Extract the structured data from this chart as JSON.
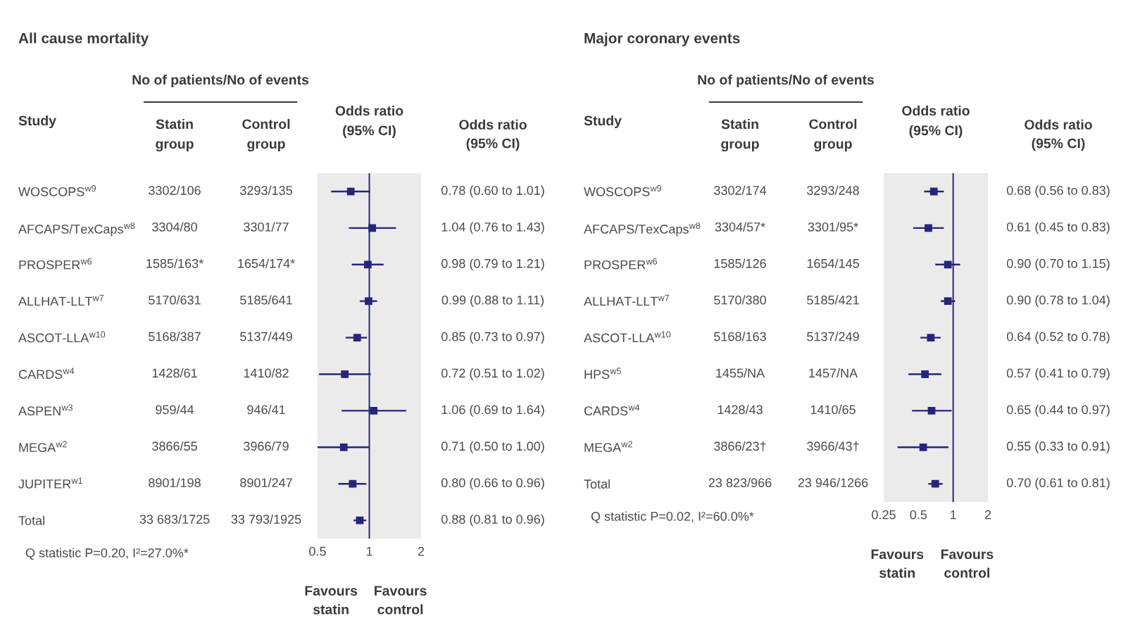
{
  "chart_data": [
    {
      "type": "other",
      "title": "All cause mortality",
      "subtitle": "No of patients/No of events",
      "ylabel": "Study",
      "categories": [
        "Statin\ngroup",
        "Control\ngroup"
      ],
      "y_categories": [
        "WOSCOPS$^{w9}$",
        "AFCAPS/TexCaps$^{w8}$",
        "PROSPER$^{w6}$",
        "ALLHAT-LLT$^{w7}$",
        "ASCOT-LLA$^{w10}$",
        "CARDS$^{w4}$",
        "ASPEN$^{w3}$",
        "MEGA$^{w2}$",
        "JUPITER$^{w1}$",
        "Total"
      ],
      "cell_labels": [
        [
          "3302/106",
          "3293/135"
        ],
        [
          "3304/80",
          "3301/77"
        ],
        [
          "1585/163*",
          "1654/174*"
        ],
        [
          "5170/631",
          "5185/641"
        ],
        [
          "5168/387",
          "5137/449"
        ],
        [
          "1428/61",
          "1410/82"
        ],
        [
          "959/44",
          "946/41"
        ],
        [
          "3866/55",
          "3966/79"
        ],
        [
          "8901/198",
          "8901/247"
        ],
        [
          "33 683/1725",
          "33 793/1925"
        ]
      ],
      "annotations": [
        "Q statistic P=0.20, I²=27.0%*"
      ]
    },
    {
      "type": "scatter",
      "orientation": "horizontal",
      "xlabel": "Odds ratio\n(95% CI)",
      "categories": [
        null,
        null,
        null,
        null,
        null,
        null,
        null,
        null,
        null,
        null
      ],
      "values": [
        0.78,
        1.04,
        0.98,
        0.99,
        0.85,
        0.72,
        1.06,
        0.71,
        0.8,
        0.88
      ],
      "errors": [
        [
          0.6,
          1.01
        ],
        [
          0.76,
          1.43
        ],
        [
          0.79,
          1.21
        ],
        [
          0.88,
          1.11
        ],
        [
          0.73,
          0.97
        ],
        [
          0.51,
          1.02
        ],
        [
          0.69,
          1.64
        ],
        [
          0.5,
          1.0
        ],
        [
          0.66,
          0.96
        ],
        [
          0.81,
          0.96
        ]
      ],
      "value_labels": [
        "0.78 (0.60 to 1.01)",
        "1.04 (0.76 to 1.43)",
        "0.98 (0.79 to 1.21)",
        "0.99 (0.88 to 1.11)",
        "0.85 (0.73 to 0.97)",
        "0.72 (0.51 to 1.02)",
        "1.06 (0.69 to 1.64)",
        "0.71 (0.50 to 1.00)",
        "0.80 (0.66 to 0.96)",
        "0.88 (0.81 to 0.96)"
      ],
      "color": "#25257a",
      "marker": "square",
      "log": "x",
      "xlim": [
        0.5,
        2
      ],
      "xticks": [
        0.5,
        1,
        2
      ],
      "ref_lines": [
        {
          "axis": "x",
          "value": 1,
          "color": "#25257a"
        }
      ],
      "bands": [
        {
          "axis": "x",
          "from": 0.5,
          "to": 2,
          "color": "#ebebeb"
        }
      ],
      "annotations": [
        "Odds ratio\n(95% CI)",
        "Favours\nstatin",
        "Favours\ncontrol"
      ]
    },
    {
      "type": "other",
      "title": "Major coronary events",
      "subtitle": "No of patients/No of events",
      "ylabel": "Study",
      "categories": [
        "Statin\ngroup",
        "Control\ngroup"
      ],
      "y_categories": [
        "WOSCOPS$^{w9}$",
        "AFCAPS/TexCaps$^{w8}$",
        "PROSPER$^{w6}$",
        "ALLHAT-LLT$^{w7}$",
        "ASCOT-LLA$^{w10}$",
        "HPS$^{w5}$",
        "CARDS$^{w4}$",
        "MEGA$^{w2}$",
        "Total"
      ],
      "cell_labels": [
        [
          "3302/174",
          "3293/248"
        ],
        [
          "3304/57*",
          "3301/95*"
        ],
        [
          "1585/126",
          "1654/145"
        ],
        [
          "5170/380",
          "5185/421"
        ],
        [
          "5168/163",
          "5137/249"
        ],
        [
          "1455/NA",
          "1457/NA"
        ],
        [
          "1428/43",
          "1410/65"
        ],
        [
          "3866/23†",
          "3966/43†"
        ],
        [
          "23 823/966",
          "23 946/1266"
        ]
      ],
      "annotations": [
        "Q statistic P=0.02, I²=60.0%*"
      ]
    },
    {
      "type": "scatter",
      "orientation": "horizontal",
      "xlabel": "Odds ratio\n(95% CI)",
      "categories": [
        null,
        null,
        null,
        null,
        null,
        null,
        null,
        null,
        null
      ],
      "values": [
        0.68,
        0.61,
        0.9,
        0.9,
        0.64,
        0.57,
        0.65,
        0.55,
        0.7
      ],
      "errors": [
        [
          0.56,
          0.83
        ],
        [
          0.45,
          0.83
        ],
        [
          0.7,
          1.15
        ],
        [
          0.78,
          1.04
        ],
        [
          0.52,
          0.78
        ],
        [
          0.41,
          0.79
        ],
        [
          0.44,
          0.97
        ],
        [
          0.33,
          0.91
        ],
        [
          0.61,
          0.81
        ]
      ],
      "value_labels": [
        "0.68 (0.56 to 0.83)",
        "0.61 (0.45 to 0.83)",
        "0.90 (0.70 to 1.15)",
        "0.90 (0.78 to 1.04)",
        "0.64 (0.52 to 0.78)",
        "0.57 (0.41 to 0.79)",
        "0.65 (0.44 to 0.97)",
        "0.55 (0.33 to 0.91)",
        "0.70 (0.61 to 0.81)"
      ],
      "color": "#25257a",
      "marker": "square",
      "log": "x",
      "xlim": [
        0.25,
        2
      ],
      "xticks": [
        0.25,
        0.5,
        1,
        2
      ],
      "ref_lines": [
        {
          "axis": "x",
          "value": 1,
          "color": "#25257a"
        }
      ],
      "bands": [
        {
          "axis": "x",
          "from": 0.25,
          "to": 2,
          "color": "#ebebeb"
        }
      ],
      "annotations": [
        "Odds ratio\n(95% CI)",
        "Favours\nstatin",
        "Favours\ncontrol"
      ]
    }
  ]
}
